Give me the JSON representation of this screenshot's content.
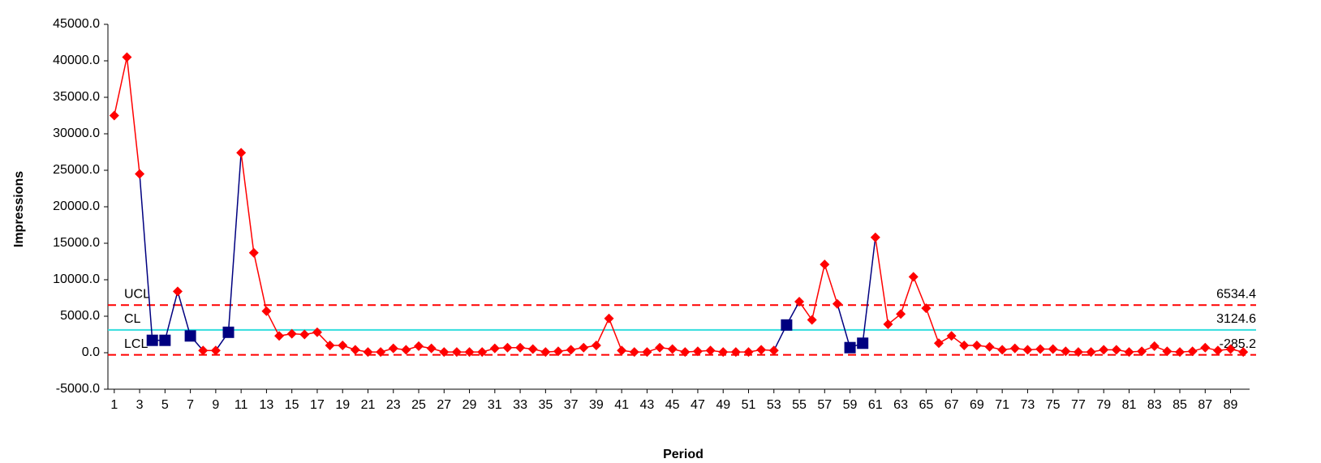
{
  "chart_data": {
    "type": "control",
    "x_label": "Period",
    "y_label": "Impressions",
    "x": [
      1,
      2,
      3,
      4,
      5,
      6,
      7,
      8,
      9,
      10,
      11,
      12,
      13,
      14,
      15,
      16,
      17,
      18,
      19,
      20,
      21,
      22,
      23,
      24,
      25,
      26,
      27,
      28,
      29,
      30,
      31,
      32,
      33,
      34,
      35,
      36,
      37,
      38,
      39,
      40,
      41,
      42,
      43,
      44,
      45,
      46,
      47,
      48,
      49,
      50,
      51,
      52,
      53,
      54,
      55,
      56,
      57,
      58,
      59,
      60,
      61,
      62,
      63,
      64,
      65,
      66,
      67,
      68,
      69,
      70,
      71,
      72,
      73,
      74,
      75,
      76,
      77,
      78,
      79,
      80,
      81,
      82,
      83,
      84,
      85,
      86,
      87,
      88,
      89,
      90
    ],
    "series": [
      {
        "name": "Impressions",
        "color": "#ff0000",
        "flag_color": "#000080",
        "values": [
          32500,
          40500,
          24500,
          1700,
          1700,
          8400,
          2300,
          300,
          300,
          2800,
          27400,
          13700,
          5700,
          2300,
          2600,
          2500,
          2800,
          1000,
          1000,
          400,
          100,
          100,
          600,
          400,
          900,
          600,
          100,
          100,
          100,
          100,
          600,
          700,
          700,
          500,
          100,
          200,
          400,
          700,
          1000,
          4700,
          300,
          100,
          100,
          700,
          500,
          100,
          200,
          300,
          100,
          100,
          100,
          400,
          300,
          3800,
          7000,
          4500,
          12100,
          6700,
          700,
          1300,
          15800,
          3900,
          5300,
          10400,
          6100,
          1300,
          2300,
          1000,
          1000,
          800,
          400,
          600,
          400,
          500,
          500,
          200,
          100,
          100,
          400,
          400,
          100,
          200,
          900,
          200,
          100,
          200,
          700,
          300,
          500,
          100
        ],
        "flagged": [
          false,
          false,
          false,
          true,
          true,
          false,
          true,
          false,
          false,
          true,
          false,
          false,
          false,
          false,
          false,
          false,
          false,
          false,
          false,
          false,
          false,
          false,
          false,
          false,
          false,
          false,
          false,
          false,
          false,
          false,
          false,
          false,
          false,
          false,
          false,
          false,
          false,
          false,
          false,
          false,
          false,
          false,
          false,
          false,
          false,
          false,
          false,
          false,
          false,
          false,
          false,
          false,
          false,
          true,
          false,
          false,
          false,
          false,
          true,
          true,
          false,
          false,
          false,
          false,
          false,
          false,
          false,
          false,
          false,
          false,
          false,
          false,
          false,
          false,
          false,
          false,
          false,
          false,
          false,
          false,
          false,
          false,
          false,
          false,
          false,
          false,
          false,
          false,
          false,
          false
        ]
      }
    ],
    "control_lines": [
      {
        "name": "UCL",
        "value": 6534.4,
        "color": "#ff0000",
        "dashed": true
      },
      {
        "name": "CL",
        "value": 3124.6,
        "color": "#33dddd",
        "dashed": false
      },
      {
        "name": "LCL",
        "value": -285.2,
        "color": "#ff0000",
        "dashed": true
      }
    ],
    "xlim": [
      0.5,
      90.5
    ],
    "xticks": [
      1,
      3,
      5,
      7,
      9,
      11,
      13,
      15,
      17,
      19,
      21,
      23,
      25,
      27,
      29,
      31,
      33,
      35,
      37,
      39,
      41,
      43,
      45,
      47,
      49,
      51,
      53,
      55,
      57,
      59,
      61,
      63,
      65,
      67,
      69,
      71,
      73,
      75,
      77,
      79,
      81,
      83,
      85,
      87,
      89
    ],
    "ylim": [
      -5000,
      45000
    ],
    "yticks": [
      {
        "value": -5000,
        "label": "-5000.0"
      },
      {
        "value": 0,
        "label": "0.0"
      },
      {
        "value": 5000,
        "label": "5000.0"
      },
      {
        "value": 10000,
        "label": "10000.0"
      },
      {
        "value": 15000,
        "label": "15000.0"
      },
      {
        "value": 20000,
        "label": "20000.0"
      },
      {
        "value": 25000,
        "label": "25000.0"
      },
      {
        "value": 30000,
        "label": "30000.0"
      },
      {
        "value": 35000,
        "label": "35000.0"
      },
      {
        "value": 40000,
        "label": "40000.0"
      },
      {
        "value": 45000,
        "label": "45000.0"
      }
    ]
  }
}
